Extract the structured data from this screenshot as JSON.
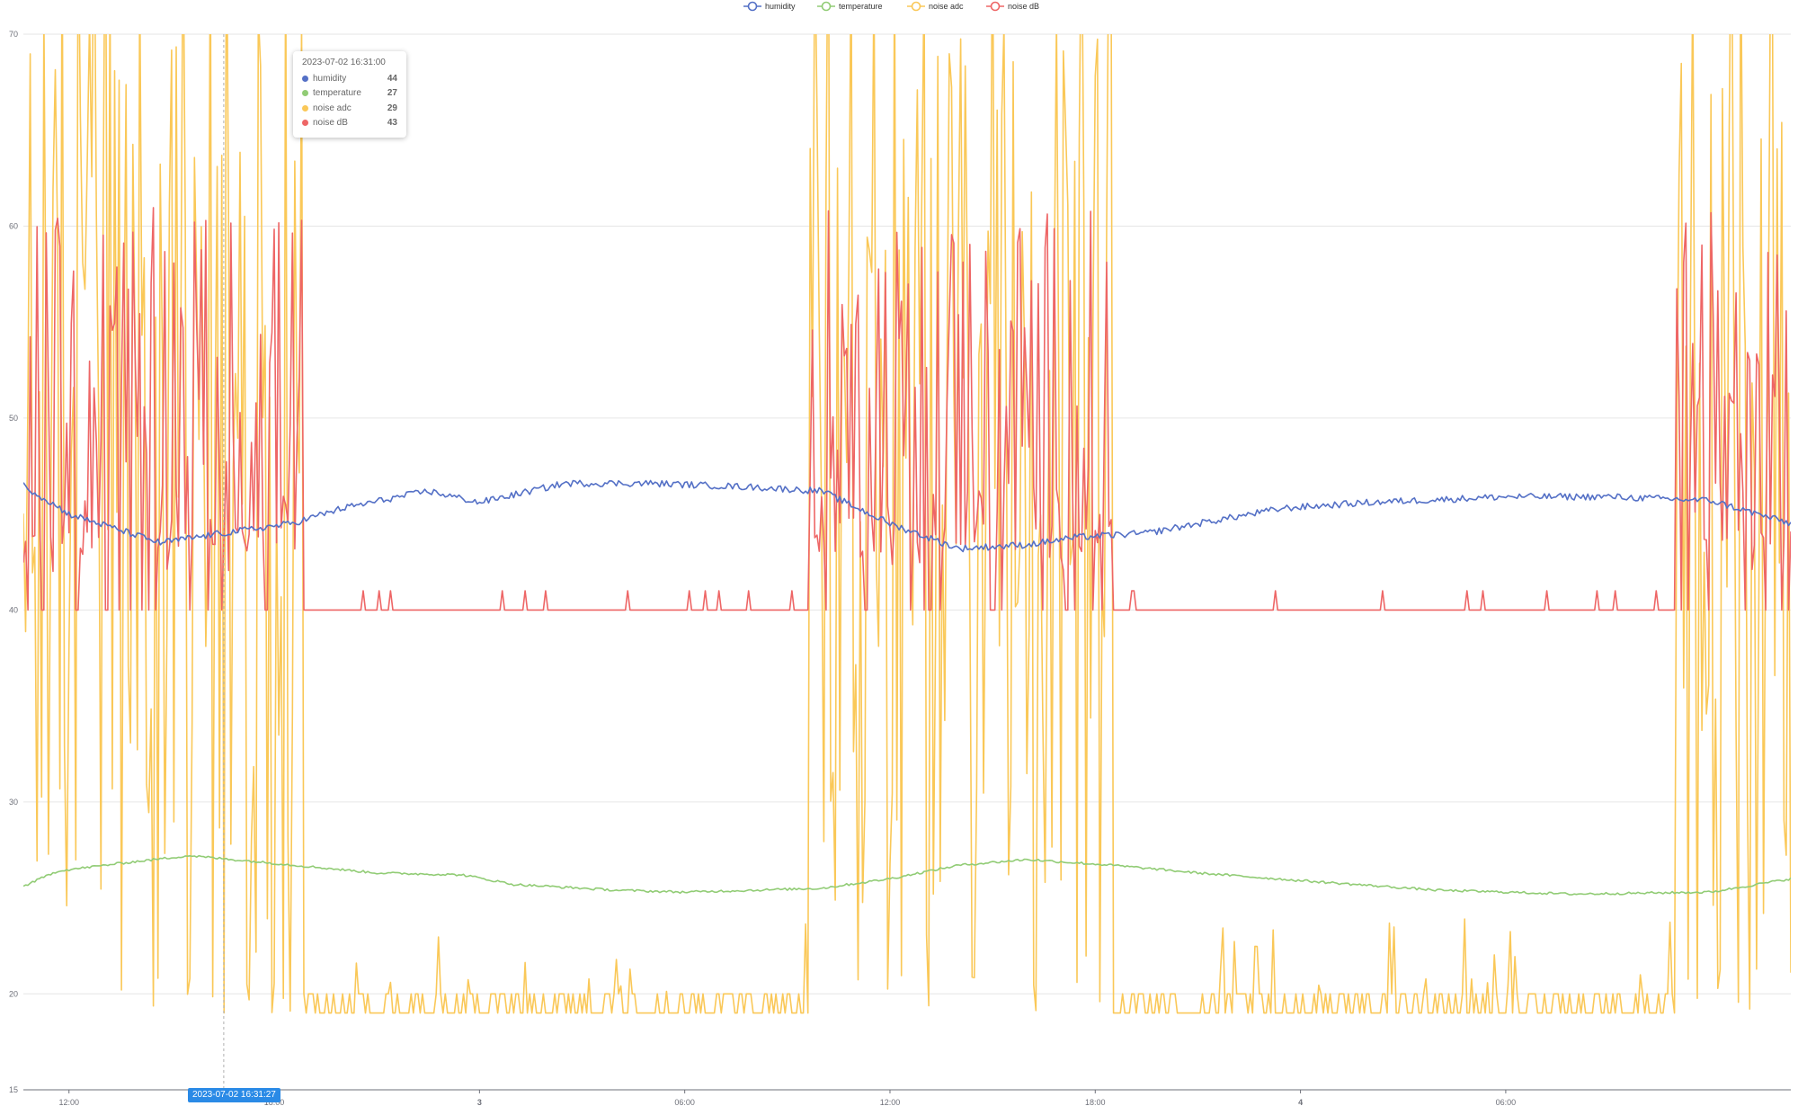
{
  "chart_data": {
    "type": "line",
    "title": "",
    "xlabel": "",
    "ylabel": "",
    "ylim": [
      15,
      70
    ],
    "y_ticks": [
      15,
      20,
      30,
      40,
      50,
      60,
      70
    ],
    "x_range": [
      "2023-07-02 10:40",
      "2023-07-04 14:20"
    ],
    "x_ticks": [
      {
        "label": "12:00",
        "t": "2023-07-02 12:00"
      },
      {
        "label": "18:00",
        "t": "2023-07-02 18:00"
      },
      {
        "label": "3",
        "t": "2023-07-03 00:00",
        "bold": true
      },
      {
        "label": "06:00",
        "t": "2023-07-03 06:00"
      },
      {
        "label": "12:00",
        "t": "2023-07-03 12:00"
      },
      {
        "label": "18:00",
        "t": "2023-07-03 18:00"
      },
      {
        "label": "4",
        "t": "2023-07-04 00:00",
        "bold": true
      },
      {
        "label": "06:00",
        "t": "2023-07-04 06:00"
      }
    ],
    "grid": true,
    "legend_position": "top-center",
    "series": [
      {
        "name": "humidity",
        "color": "#5470c6",
        "keypoints": [
          [
            "2023-07-02 10:40",
            46.5
          ],
          [
            "2023-07-02 12:00",
            45
          ],
          [
            "2023-07-02 14:40",
            43.5
          ],
          [
            "2023-07-02 16:30",
            44
          ],
          [
            "2023-07-02 18:30",
            44.5
          ],
          [
            "2023-07-02 20:00",
            45.3
          ],
          [
            "2023-07-02 22:30",
            46.2
          ],
          [
            "2023-07-03 00:00",
            45.6
          ],
          [
            "2023-07-03 02:30",
            46.6
          ],
          [
            "2023-07-03 05:00",
            46.6
          ],
          [
            "2023-07-03 08:00",
            46.4
          ],
          [
            "2023-07-03 10:00",
            46.2
          ],
          [
            "2023-07-03 12:00",
            44.5
          ],
          [
            "2023-07-03 14:00",
            43.2
          ],
          [
            "2023-07-03 16:00",
            43.4
          ],
          [
            "2023-07-03 17:30",
            43.8
          ],
          [
            "2023-07-03 19:30",
            44
          ],
          [
            "2023-07-03 21:00",
            44.5
          ],
          [
            "2023-07-03 23:30",
            45.3
          ],
          [
            "2023-07-04 02:00",
            45.6
          ],
          [
            "2023-07-04 06:00",
            45.9
          ],
          [
            "2023-07-04 09:00",
            45.9
          ],
          [
            "2023-07-04 12:00",
            45.7
          ],
          [
            "2023-07-04 14:20",
            44.5
          ]
        ]
      },
      {
        "name": "temperature",
        "color": "#91cc75",
        "keypoints": [
          [
            "2023-07-02 10:40",
            25.6
          ],
          [
            "2023-07-02 11:40",
            26.4
          ],
          [
            "2023-07-02 13:30",
            26.8
          ],
          [
            "2023-07-02 15:30",
            27.2
          ],
          [
            "2023-07-02 18:00",
            26.8
          ],
          [
            "2023-07-02 21:00",
            26.3
          ],
          [
            "2023-07-02 23:30",
            26.2
          ],
          [
            "2023-07-03 01:00",
            25.7
          ],
          [
            "2023-07-03 04:00",
            25.4
          ],
          [
            "2023-07-03 06:00",
            25.3
          ],
          [
            "2023-07-03 08:00",
            25.4
          ],
          [
            "2023-07-03 10:00",
            25.5
          ],
          [
            "2023-07-03 12:00",
            26
          ],
          [
            "2023-07-03 14:00",
            26.7
          ],
          [
            "2023-07-03 16:00",
            27
          ],
          [
            "2023-07-03 18:30",
            26.7
          ],
          [
            "2023-07-03 21:00",
            26.3
          ],
          [
            "2023-07-04 00:00",
            25.9
          ],
          [
            "2023-07-04 04:00",
            25.4
          ],
          [
            "2023-07-04 08:00",
            25.2
          ],
          [
            "2023-07-04 12:00",
            25.3
          ],
          [
            "2023-07-04 14:20",
            26
          ]
        ]
      },
      {
        "name": "noise adc",
        "color": "#fac858",
        "baseline": 19,
        "active_periods": [
          [
            "2023-07-02 10:40",
            "2023-07-02 18:50"
          ],
          [
            "2023-07-03 09:40",
            "2023-07-03 18:30"
          ],
          [
            "2023-07-04 11:00",
            "2023-07-04 14:20"
          ]
        ],
        "active_range": [
          20,
          70
        ]
      },
      {
        "name": "noise dB",
        "color": "#ee6666",
        "baseline": 40,
        "active_periods": [
          [
            "2023-07-02 10:40",
            "2023-07-02 18:50"
          ],
          [
            "2023-07-03 09:40",
            "2023-07-03 18:30"
          ],
          [
            "2023-07-04 11:00",
            "2023-07-04 14:20"
          ]
        ],
        "active_range": [
          42,
          61
        ]
      }
    ]
  },
  "tooltip": {
    "time": "2023-07-02 16:31:00",
    "rows": [
      {
        "name": "humidity",
        "value": "44",
        "color": "#5470c6"
      },
      {
        "name": "temperature",
        "value": "27",
        "color": "#91cc75"
      },
      {
        "name": "noise adc",
        "value": "29",
        "color": "#fac858"
      },
      {
        "name": "noise dB",
        "value": "43",
        "color": "#ee6666"
      }
    ]
  },
  "axis_pointer": {
    "label": "2023-07-02 16:31:27",
    "t": "2023-07-02 16:31:27"
  }
}
